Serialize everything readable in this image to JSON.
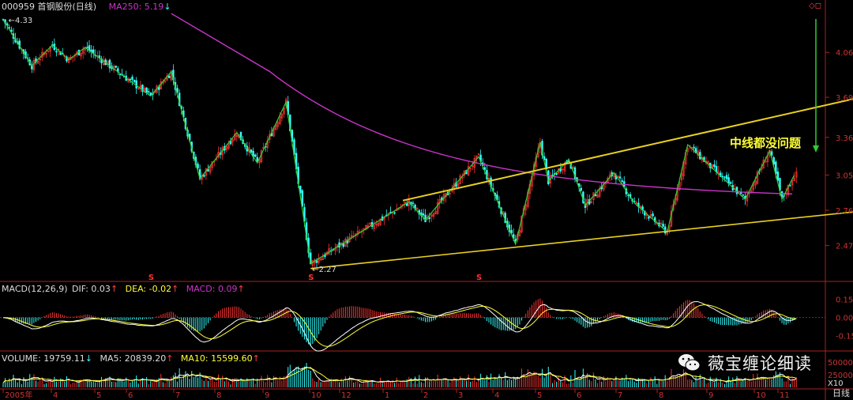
{
  "header": {
    "code": "000959",
    "name": "首钢股份(日线)",
    "ma250_label": "MA250: 5.19",
    "ma250_arrow": "↓",
    "corner_icons": "◇◻"
  },
  "macd_header": {
    "params": "MACD(12,26,9)",
    "dif": "DIF: 0.03",
    "dif_arrow": "↑",
    "dea": "DEA: -0.02",
    "dea_arrow": "↑",
    "macd": "MACD: 0.09",
    "macd_arrow": "↑"
  },
  "volume_header": {
    "volume": "VOLUME: 19759.11",
    "volume_arrow": "↓",
    "ma5": "MA5: 20839.20",
    "ma5_arrow": "↑",
    "ma10": "MA10: 15599.60",
    "ma10_arrow": "↑"
  },
  "annotation": "中线都没问题",
  "watermark": "薇宝缠论细读",
  "footer_right": "日线",
  "colors": {
    "up": "#ff3333",
    "down": "#33ffff",
    "ma250": "#cc33cc",
    "zigzag": "#33cc33",
    "channel": "#e8d020",
    "annotation": "#ffff33",
    "axis": "#aa2222",
    "dif": "#ffffff",
    "dea": "#ffff33"
  },
  "chart_data": [
    {
      "type": "candlestick",
      "y_tick_labels": [
        "4.06",
        "3.69",
        "3.36",
        "3.05",
        "2.76",
        "2.47"
      ],
      "ylim": [
        2.2,
        4.4
      ],
      "x_tick_labels": [
        "2005年",
        "4",
        "5",
        "6",
        "7",
        "8",
        "9",
        "10",
        "12",
        "1",
        "2",
        "3",
        "4",
        "5",
        "6",
        "7",
        "8",
        "9",
        "10",
        "11"
      ],
      "annotations": [
        "4.33",
        "2.27",
        "中线都没问题"
      ],
      "signal_markers": [
        "S",
        "S",
        "S"
      ],
      "zigzag_points": [
        {
          "x": 0,
          "y": 4.33
        },
        {
          "x": 14,
          "y": 3.95
        },
        {
          "x": 24,
          "y": 4.12
        },
        {
          "x": 32,
          "y": 4.0
        },
        {
          "x": 40,
          "y": 4.1
        },
        {
          "x": 72,
          "y": 3.7
        },
        {
          "x": 82,
          "y": 3.9
        },
        {
          "x": 96,
          "y": 3.02
        },
        {
          "x": 114,
          "y": 3.4
        },
        {
          "x": 124,
          "y": 3.15
        },
        {
          "x": 138,
          "y": 3.65
        },
        {
          "x": 150,
          "y": 2.32
        },
        {
          "x": 198,
          "y": 2.83
        },
        {
          "x": 206,
          "y": 2.68
        },
        {
          "x": 232,
          "y": 3.2
        },
        {
          "x": 250,
          "y": 2.48
        },
        {
          "x": 262,
          "y": 3.32
        },
        {
          "x": 266,
          "y": 3.0
        },
        {
          "x": 276,
          "y": 3.18
        },
        {
          "x": 284,
          "y": 2.8
        },
        {
          "x": 298,
          "y": 3.07
        },
        {
          "x": 308,
          "y": 2.82
        },
        {
          "x": 324,
          "y": 2.58
        },
        {
          "x": 334,
          "y": 3.3
        },
        {
          "x": 362,
          "y": 2.85
        },
        {
          "x": 374,
          "y": 3.25
        },
        {
          "x": 380,
          "y": 2.85
        },
        {
          "x": 386,
          "y": 3.05
        }
      ],
      "ma250": {
        "start": 5.19,
        "end": 2.85
      },
      "channel_lines": [
        {
          "name": "upper",
          "from": {
            "x": 195,
            "y": 2.84
          },
          "to": {
            "x": 400,
            "y": 3.62
          }
        },
        {
          "name": "lower",
          "from": {
            "x": 150,
            "y": 2.28
          },
          "to": {
            "x": 400,
            "y": 2.72
          }
        }
      ]
    },
    {
      "type": "bar",
      "title": "MACD(12,26,9)",
      "y_tick_labels": [
        "0.15",
        "0.00",
        "-0.15"
      ],
      "ylim": [
        -0.25,
        0.22
      ],
      "last_values": {
        "DIF": 0.03,
        "DEA": -0.02,
        "MACD": 0.09
      }
    },
    {
      "type": "bar",
      "title": "VOLUME",
      "y_tick_labels": [
        "50000",
        "25000",
        "X10"
      ],
      "ylim": [
        0,
        60000
      ],
      "last_values": {
        "VOLUME": 19759.11,
        "MA5": 20839.2,
        "MA10": 15599.6
      }
    }
  ]
}
